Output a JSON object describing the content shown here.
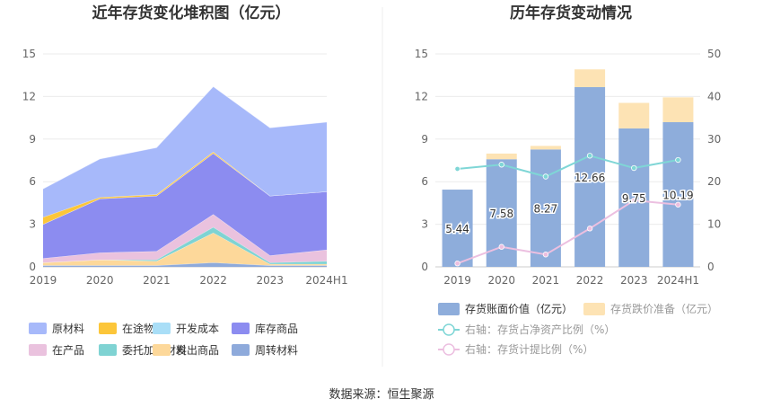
{
  "footer": {
    "source": "数据来源：恒生聚源"
  },
  "chart_data": [
    {
      "type": "area",
      "stacked": true,
      "title": "近年存货变化堆积图（亿元）",
      "categories": [
        "2019",
        "2020",
        "2021",
        "2022",
        "2023",
        "2024H1"
      ],
      "ylim": [
        0,
        15
      ],
      "yticks": [
        "0",
        "3",
        "6",
        "9",
        "12",
        "15"
      ],
      "grid": true,
      "legend_position": "bottom",
      "series": [
        {
          "name": "周转材料",
          "color": "#8eaadb",
          "values": [
            0.1,
            0.1,
            0.1,
            0.3,
            0.1,
            0.1
          ]
        },
        {
          "name": "发出商品",
          "color": "#fdd89a",
          "values": [
            0.2,
            0.4,
            0.3,
            2.1,
            0.1,
            0.1
          ]
        },
        {
          "name": "委托加工材料",
          "color": "#7fd3d3",
          "values": [
            0.0,
            0.0,
            0.1,
            0.4,
            0.1,
            0.2
          ]
        },
        {
          "name": "在产品",
          "color": "#eac2de",
          "values": [
            0.3,
            0.5,
            0.6,
            0.9,
            0.5,
            0.8
          ]
        },
        {
          "name": "库存商品",
          "color": "#8c8cf0",
          "values": [
            2.4,
            3.8,
            3.9,
            4.3,
            4.2,
            4.1
          ]
        },
        {
          "name": "开发成本",
          "color": "#a9def7",
          "values": [
            0.0,
            0.0,
            0.0,
            0.0,
            0.0,
            0.0
          ]
        },
        {
          "name": "在途物资",
          "color": "#fcc63a",
          "values": [
            0.5,
            0.1,
            0.1,
            0.1,
            0.0,
            0.0
          ]
        },
        {
          "name": "原材料",
          "color": "#a7b9fa",
          "values": [
            2.0,
            2.7,
            3.3,
            4.6,
            4.8,
            4.9
          ]
        }
      ],
      "legend_order": [
        "原材料",
        "在途物资",
        "开发成本",
        "库存商品",
        "在产品",
        "委托加工材料",
        "发出商品",
        "周转材料"
      ]
    },
    {
      "type": "bar",
      "stacked": true,
      "title": "历年存货变动情况",
      "categories": [
        "2019",
        "2020",
        "2021",
        "2022",
        "2023",
        "2024H1"
      ],
      "ylim_left": [
        0,
        15
      ],
      "yticks_left": [
        "0",
        "3",
        "6",
        "9",
        "12",
        "15"
      ],
      "ylim_right": [
        0,
        50
      ],
      "yticks_right": [
        "0",
        "10",
        "20",
        "30",
        "40",
        "50"
      ],
      "grid": true,
      "legend_position": "bottom",
      "series": [
        {
          "name": "存货账面价值（亿元）",
          "color": "#8eaddb",
          "values": [
            5.44,
            7.58,
            8.27,
            12.66,
            9.75,
            10.19
          ],
          "labels": [
            "5.44",
            "7.58",
            "8.27",
            "12.66",
            "9.75",
            "10.19"
          ]
        },
        {
          "name": "存货跌价准备（亿元）",
          "color": "#fde3b4",
          "values": [
            0.0,
            0.4,
            0.25,
            1.25,
            1.8,
            1.75
          ]
        }
      ],
      "line_series": [
        {
          "name": "右轴：存货占净资产比例（%）",
          "color": "#7fd6d6",
          "axis": "right",
          "values": [
            23.0,
            24.0,
            21.2,
            26.1,
            23.2,
            25.1
          ]
        },
        {
          "name": "右轴：存货计提比例（%）",
          "color": "#ecbfe0",
          "axis": "right",
          "values": [
            0.8,
            4.7,
            2.9,
            9.0,
            15.6,
            14.6
          ]
        }
      ]
    }
  ]
}
